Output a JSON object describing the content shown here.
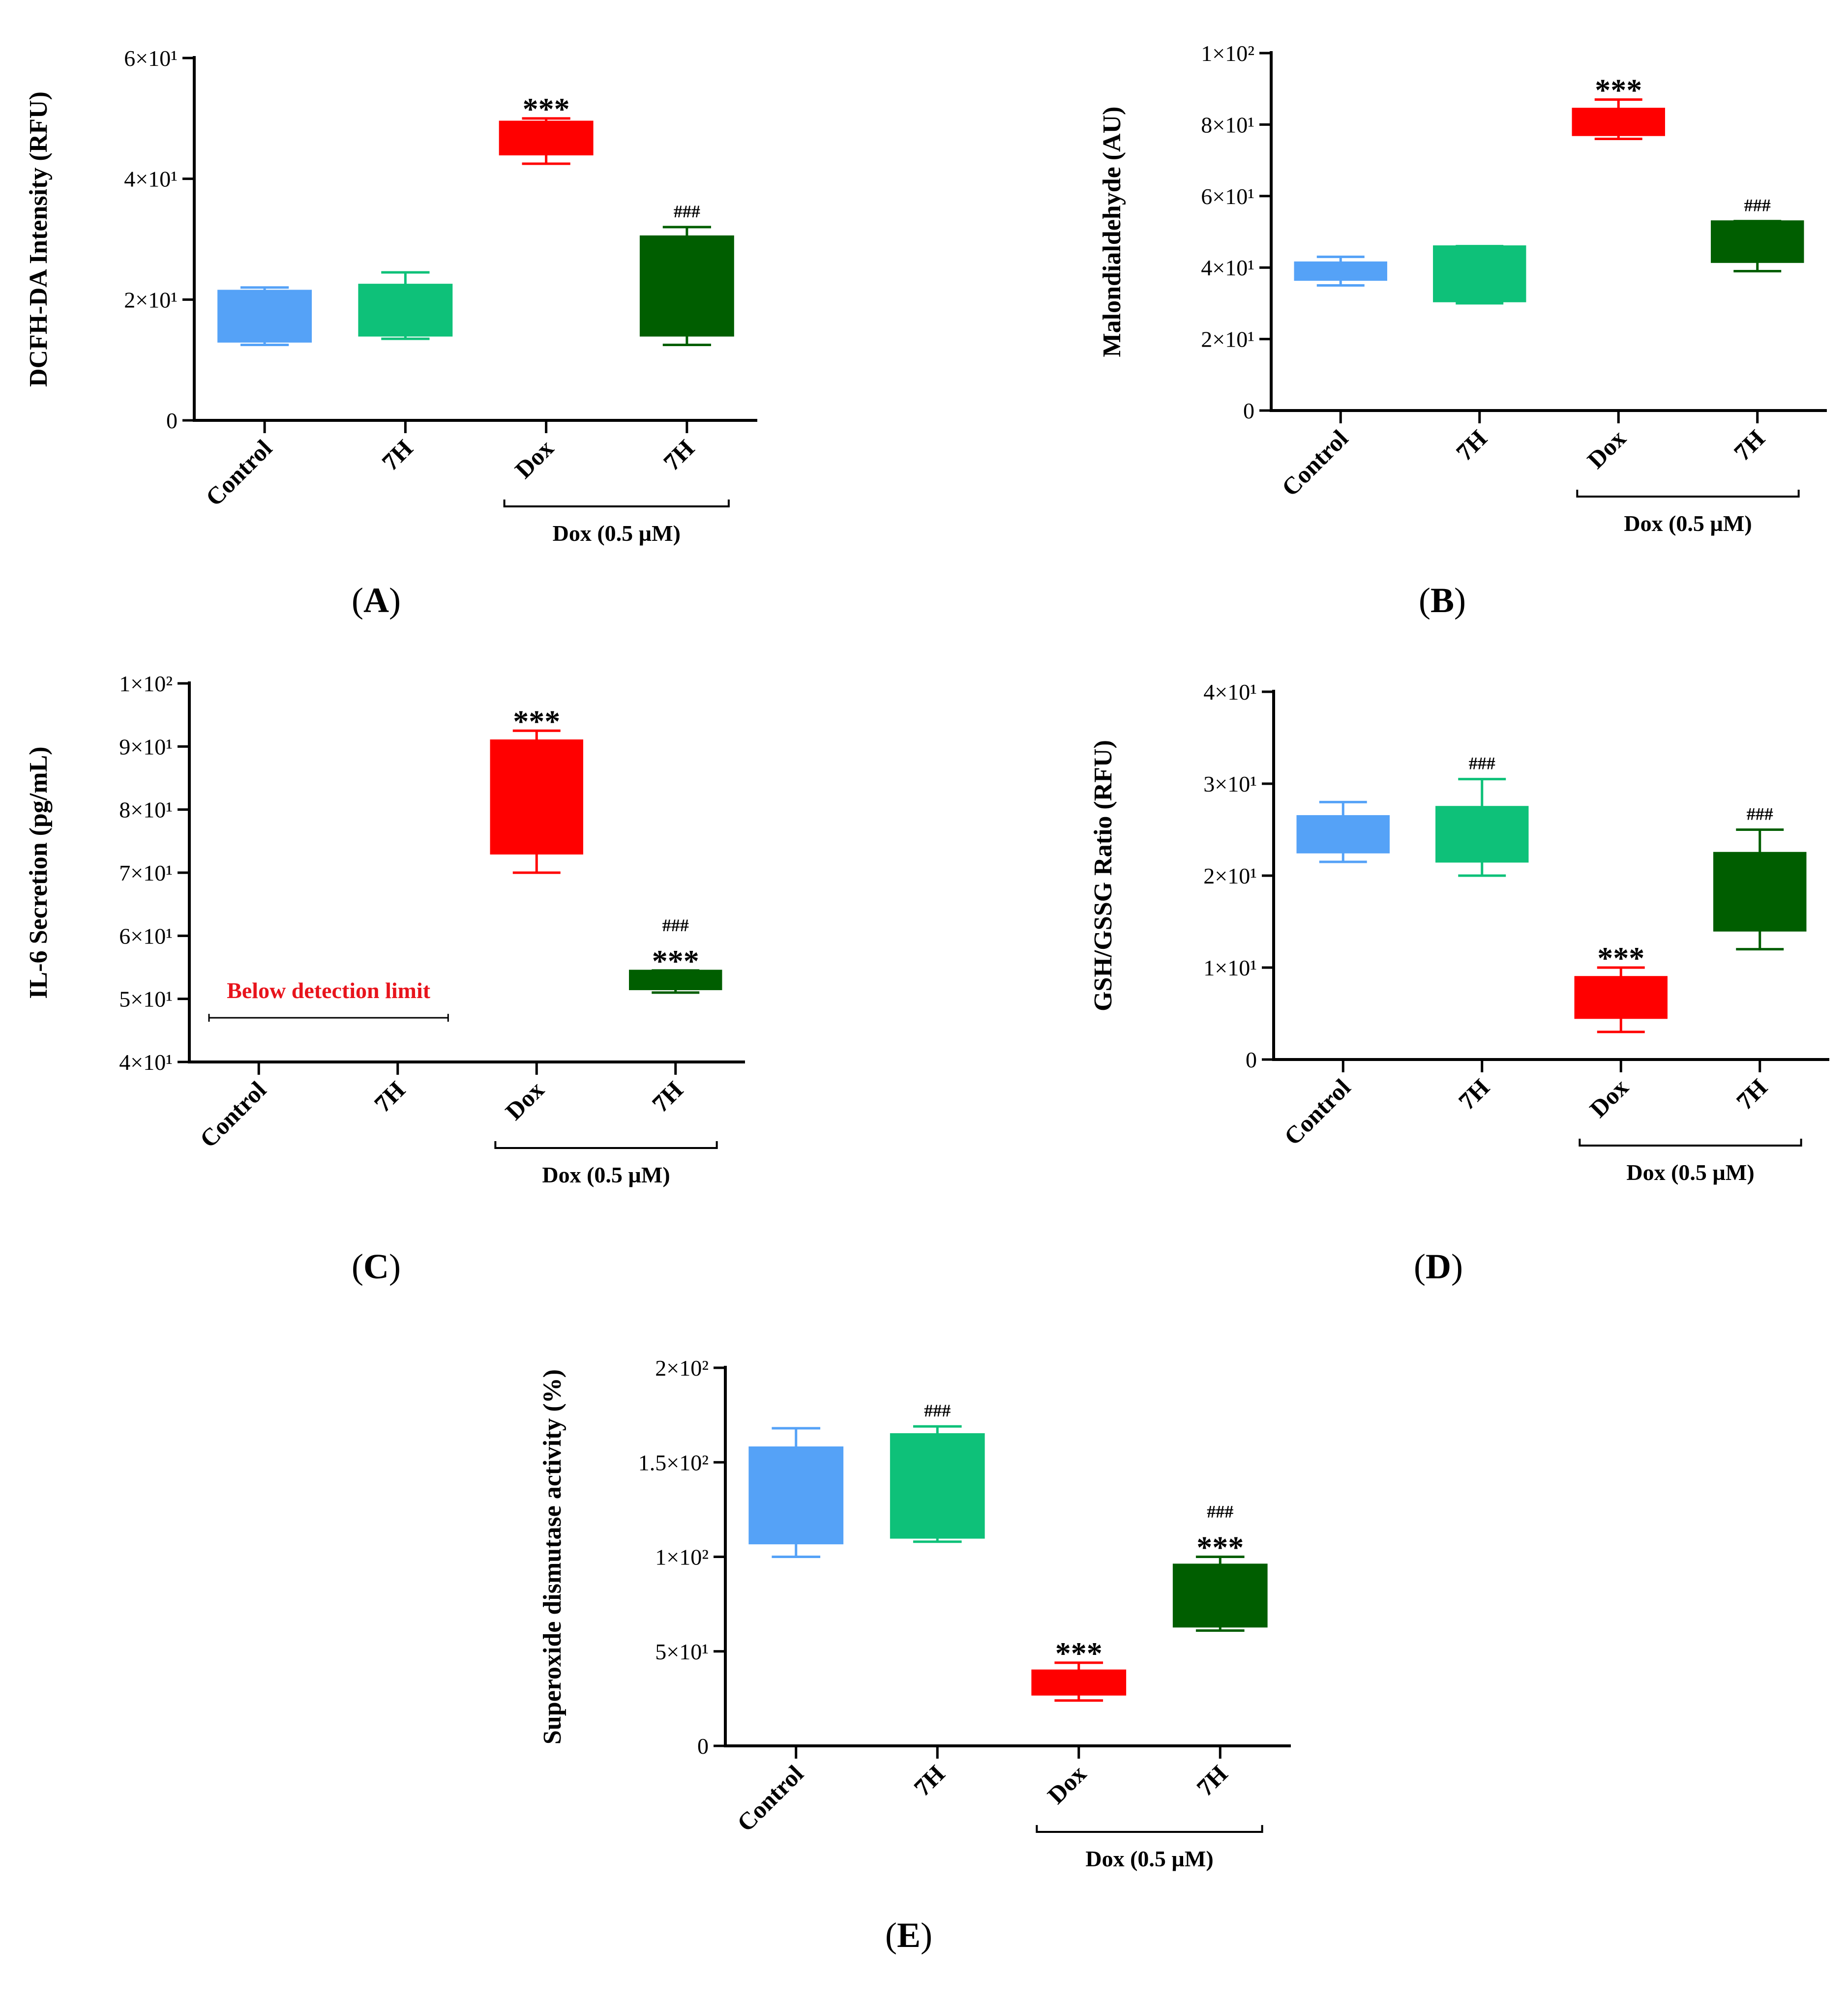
{
  "figure": {
    "panel_letters": [
      "A",
      "B",
      "C",
      "D",
      "E"
    ]
  },
  "colors": {
    "control": "#55A2F7",
    "7H": "#0EC179",
    "dox": "#FF0000",
    "dox_7H": "#005E00",
    "below_detection_text": "#E8141C"
  },
  "chart_data": [
    {
      "panel": "A",
      "type": "box",
      "ylabel": "DCFH-DA Intensity (RFU)",
      "ylim": [
        0,
        60
      ],
      "yticks": [
        0,
        20,
        40,
        60
      ],
      "ytick_labels": [
        "0",
        "2×10¹",
        "4×10¹",
        "6×10¹"
      ],
      "categories": [
        "Control",
        "7H",
        "Dox",
        "7H"
      ],
      "bracket_label": "Dox (0.5 µM)",
      "boxes": [
        {
          "min": 12.5,
          "q1": 13,
          "q3": 21.5,
          "max": 22,
          "color_key": "control",
          "annot": []
        },
        {
          "min": 13.5,
          "q1": 14,
          "q3": 22.5,
          "max": 24.5,
          "color_key": "7H",
          "annot": []
        },
        {
          "min": 42.5,
          "q1": 44,
          "q3": 49.5,
          "max": 50,
          "color_key": "dox",
          "annot": [
            "***"
          ]
        },
        {
          "min": 12.5,
          "q1": 14,
          "q3": 30.5,
          "max": 32,
          "color_key": "dox_7H",
          "annot": [
            "###"
          ]
        }
      ]
    },
    {
      "panel": "B",
      "type": "box",
      "ylabel": "Malondialdehyde (AU)",
      "ylim": [
        0,
        100
      ],
      "yticks": [
        0,
        20,
        40,
        60,
        80,
        100
      ],
      "ytick_labels": [
        "0",
        "2×10¹",
        "4×10¹",
        "6×10¹",
        "8×10¹",
        "1×10²"
      ],
      "categories": [
        "Control",
        "7H",
        "Dox",
        "7H"
      ],
      "bracket_label": "Dox (0.5 µM)",
      "boxes": [
        {
          "min": 35,
          "q1": 36.5,
          "q3": 41.5,
          "max": 43,
          "color_key": "control",
          "annot": []
        },
        {
          "min": 30,
          "q1": 30.5,
          "q3": 46,
          "max": 46,
          "color_key": "7H",
          "annot": []
        },
        {
          "min": 76,
          "q1": 77,
          "q3": 84.5,
          "max": 87,
          "color_key": "dox",
          "annot": [
            "***"
          ]
        },
        {
          "min": 39,
          "q1": 41.5,
          "q3": 53,
          "max": 53,
          "color_key": "dox_7H",
          "annot": [
            "###"
          ]
        }
      ]
    },
    {
      "panel": "C",
      "type": "box",
      "ylabel": "IL-6 Secretion (pg/mL)",
      "ylim": [
        40,
        100
      ],
      "yticks": [
        40,
        50,
        60,
        70,
        80,
        90,
        100
      ],
      "ytick_labels": [
        "4×10¹",
        "5×10¹",
        "6×10¹",
        "7×10¹",
        "8×10¹",
        "9×10¹",
        "1×10²"
      ],
      "categories": [
        "Control",
        "7H",
        "Dox",
        "7H"
      ],
      "bracket_label": "Dox (0.5 µM)",
      "below_detection_label": "Below detection limit",
      "boxes": [
        null,
        null,
        {
          "min": 70,
          "q1": 73,
          "q3": 91,
          "max": 92.5,
          "color_key": "dox",
          "annot": [
            "***"
          ]
        },
        {
          "min": 51,
          "q1": 51.5,
          "q3": 54.5,
          "max": 54.5,
          "color_key": "dox_7H",
          "annot": [
            "###",
            "***"
          ]
        }
      ]
    },
    {
      "panel": "D",
      "type": "box",
      "ylabel": "GSH/GSSG Ratio (RFU)",
      "ylim": [
        0,
        40
      ],
      "yticks": [
        0,
        10,
        20,
        30,
        40
      ],
      "ytick_labels": [
        "0",
        "1×10¹",
        "2×10¹",
        "3×10¹",
        "4×10¹"
      ],
      "categories": [
        "Control",
        "7H",
        "Dox",
        "7H"
      ],
      "bracket_label": "Dox (0.5 µM)",
      "boxes": [
        {
          "min": 21.5,
          "q1": 22.5,
          "q3": 26.5,
          "max": 28,
          "color_key": "control",
          "annot": []
        },
        {
          "min": 20,
          "q1": 21.5,
          "q3": 27.5,
          "max": 30.5,
          "color_key": "7H",
          "annot": [
            "###"
          ]
        },
        {
          "min": 3,
          "q1": 4.5,
          "q3": 9,
          "max": 10,
          "color_key": "dox",
          "annot": [
            "***"
          ]
        },
        {
          "min": 12,
          "q1": 14,
          "q3": 22.5,
          "max": 25,
          "color_key": "dox_7H",
          "annot": [
            "###"
          ]
        }
      ]
    },
    {
      "panel": "E",
      "type": "box",
      "ylabel": "Superoxide dismutase activity (%)",
      "ylim": [
        0,
        200
      ],
      "yticks": [
        0,
        50,
        100,
        150,
        200
      ],
      "ytick_labels": [
        "0",
        "5×10¹",
        "1×10²",
        "1.5×10²",
        "2×10²"
      ],
      "categories": [
        "Control",
        "7H",
        "Dox",
        "7H"
      ],
      "bracket_label": "Dox (0.5 µM)",
      "boxes": [
        {
          "min": 100,
          "q1": 107,
          "q3": 158,
          "max": 168,
          "color_key": "control",
          "annot": []
        },
        {
          "min": 108,
          "q1": 110,
          "q3": 165,
          "max": 169,
          "color_key": "7H",
          "annot": [
            "###"
          ]
        },
        {
          "min": 24,
          "q1": 27,
          "q3": 40,
          "max": 44,
          "color_key": "dox",
          "annot": [
            "***"
          ]
        },
        {
          "min": 61,
          "q1": 63,
          "q3": 96,
          "max": 100,
          "color_key": "dox_7H",
          "annot": [
            "###",
            "***"
          ]
        }
      ]
    }
  ]
}
